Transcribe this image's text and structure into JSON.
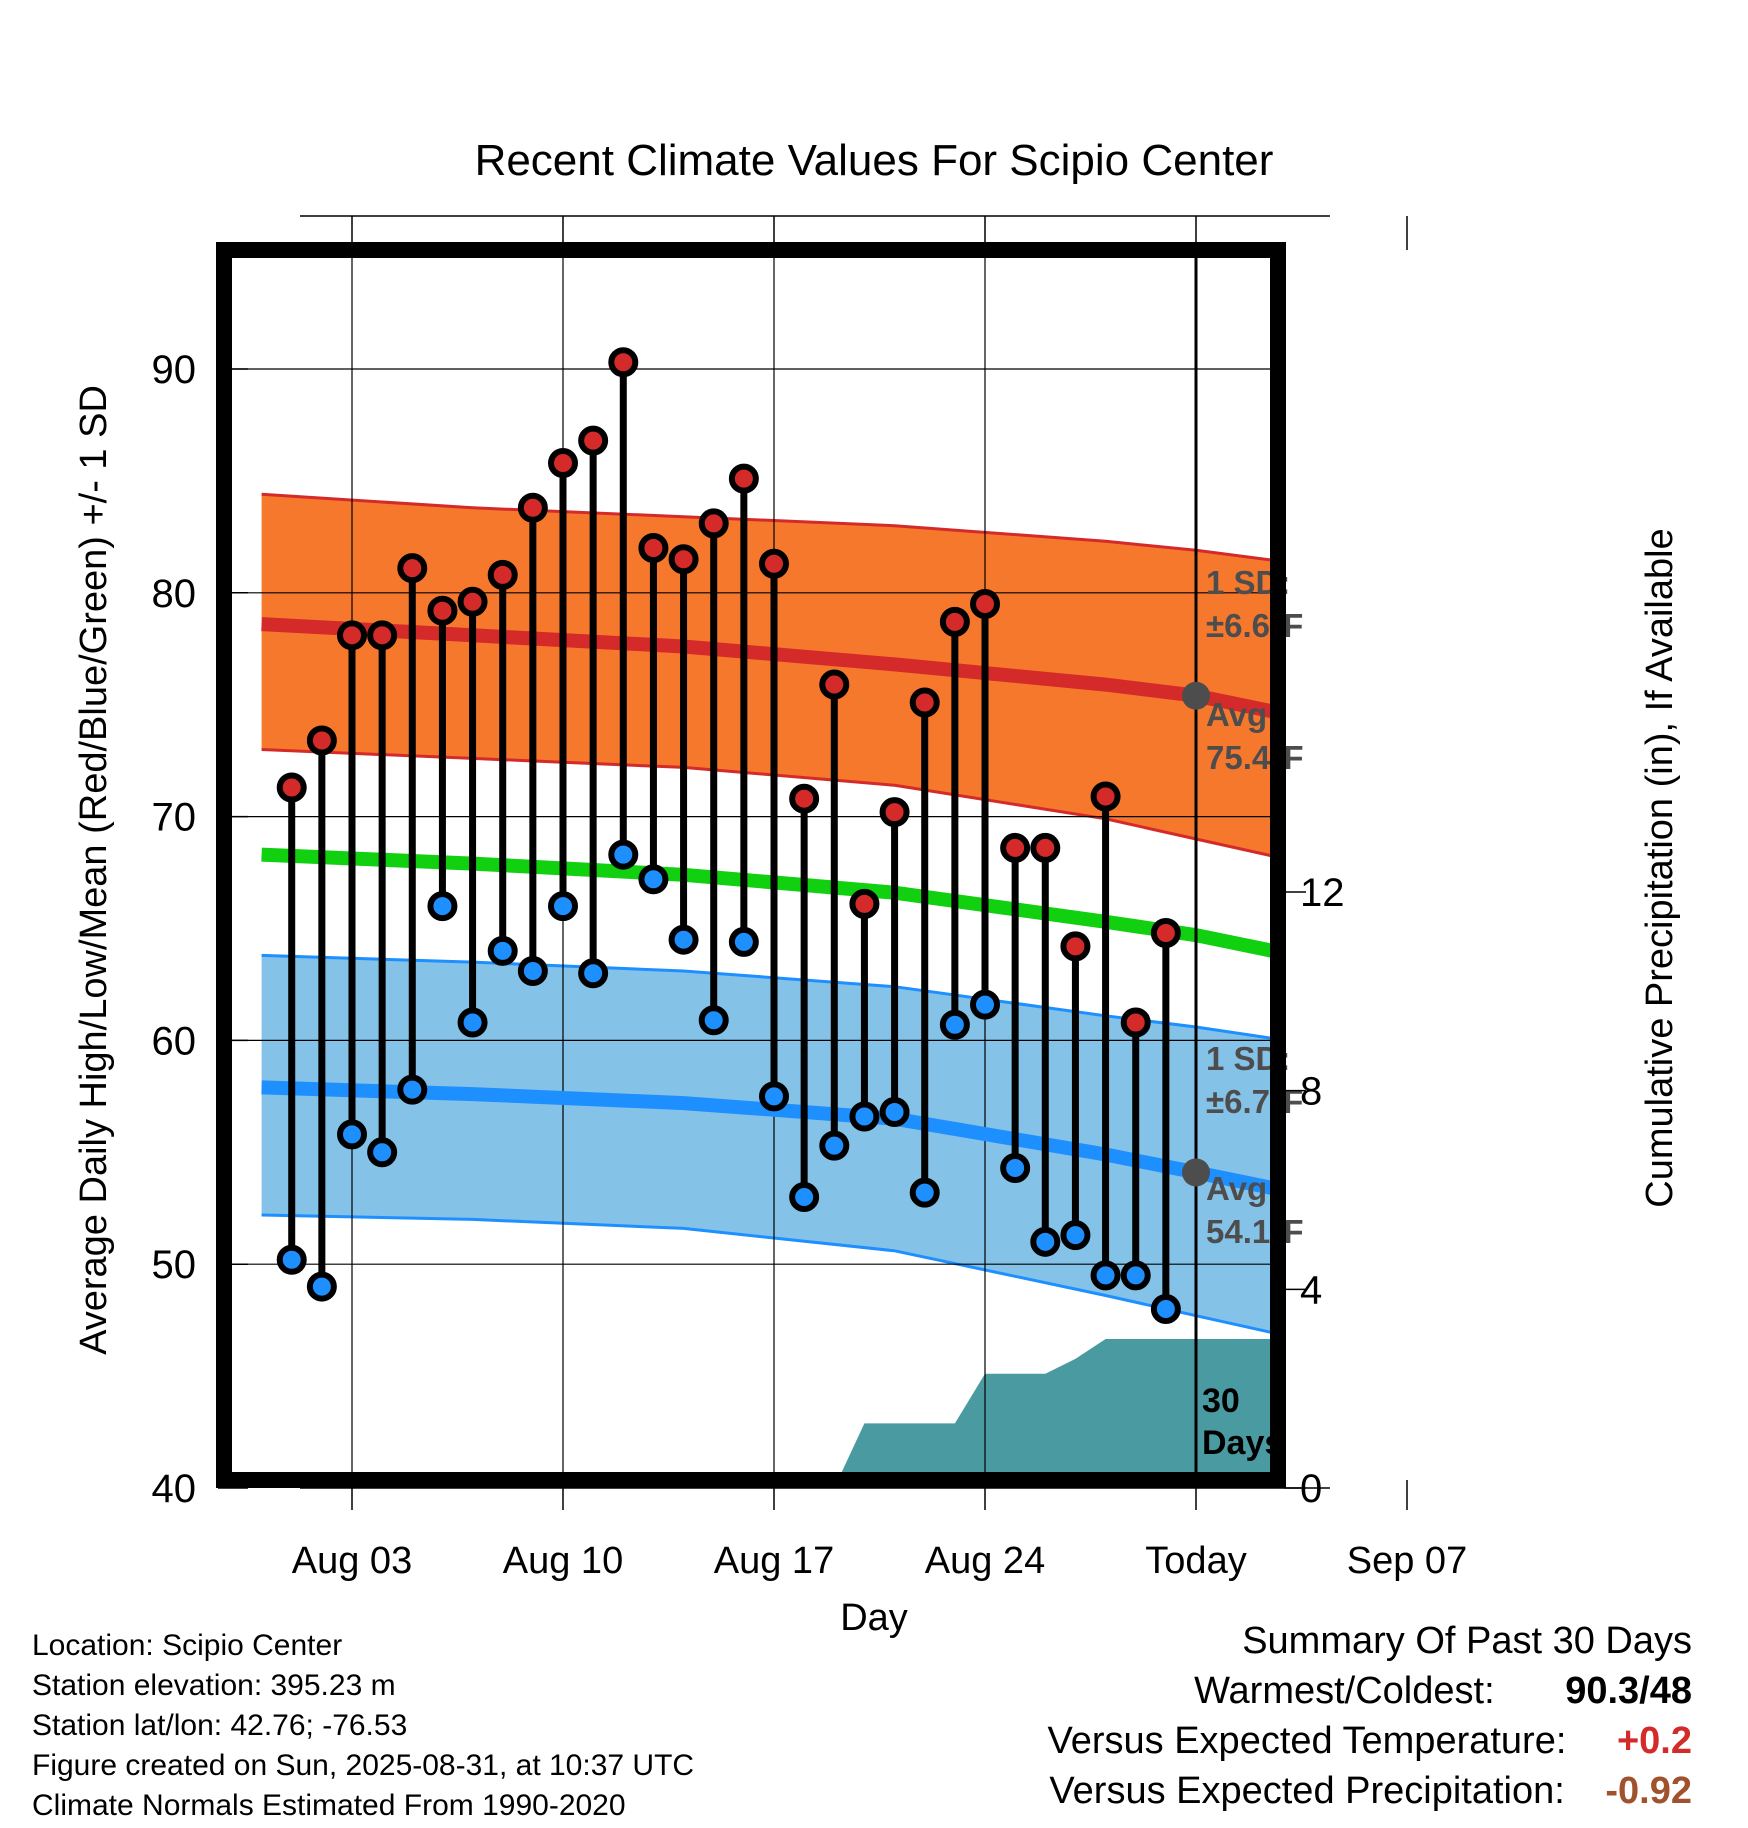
{
  "chart_data": {
    "type": "line",
    "title": "Recent Climate Values For Scipio Center",
    "xlabel": "Day",
    "ylabel": "Average Daily High/Low/Mean (Red/Blue/Green) +/- 1 SD",
    "y2label": "Cumulative Precipitation (in), If Available",
    "xlim": [
      "2025-07-31",
      "2025-09-10"
    ],
    "ylim": [
      40,
      95
    ],
    "y2lim": [
      0,
      23.5
    ],
    "grid": true,
    "x_ticks": [
      {
        "date": "2025-08-03",
        "label": "Aug 03"
      },
      {
        "date": "2025-08-10",
        "label": "Aug 10"
      },
      {
        "date": "2025-08-17",
        "label": "Aug 17"
      },
      {
        "date": "2025-08-24",
        "label": "Aug 24"
      },
      {
        "date": "2025-08-31",
        "label": "Today"
      },
      {
        "date": "2025-09-07",
        "label": "Sep 07"
      }
    ],
    "y_ticks": [
      40,
      50,
      60,
      70,
      80,
      90
    ],
    "y2_ticks": [
      0,
      4,
      8,
      12
    ],
    "today": "2025-08-31",
    "today_label_line1": "30",
    "today_label_line2": "Days",
    "colors": {
      "high": "#d42a2a",
      "high_band": "#f6782d",
      "low": "#1e8fff",
      "low_band": "#84c2e8",
      "mean": "#10d010",
      "precip": "#4a9aa2",
      "annotation": "#4d4d4d"
    },
    "normal_dates": [
      "2025-07-31",
      "2025-08-07",
      "2025-08-14",
      "2025-08-21",
      "2025-08-28",
      "2025-08-31",
      "2025-09-04",
      "2025-09-10"
    ],
    "normal_high": [
      78.6,
      78.1,
      77.6,
      76.8,
      75.9,
      75.4,
      74.3,
      72.8
    ],
    "normal_high_upper": [
      84.4,
      83.8,
      83.4,
      83.0,
      82.3,
      81.9,
      81.2,
      80.1
    ],
    "normal_high_lower": [
      73.0,
      72.6,
      72.2,
      71.4,
      69.9,
      69.0,
      67.8,
      66.0
    ],
    "normal_mean": [
      68.3,
      67.9,
      67.4,
      66.6,
      65.3,
      64.7,
      63.6,
      62.0
    ],
    "normal_low": [
      57.9,
      57.6,
      57.2,
      56.5,
      54.9,
      54.1,
      53.0,
      51.3
    ],
    "normal_low_upper": [
      63.8,
      63.5,
      63.1,
      62.4,
      61.1,
      60.6,
      59.8,
      58.6
    ],
    "normal_low_lower": [
      52.2,
      52.0,
      51.6,
      50.6,
      48.6,
      47.7,
      46.5,
      45.0
    ],
    "high_sd_label": "1 SD:",
    "high_sd_value": "±6.6°F",
    "high_avg_label": "Avg:",
    "high_avg_value": "75.4°F",
    "low_sd_label": "1 SD:",
    "low_sd_value": "±6.7°F",
    "low_avg_label": "Avg:",
    "low_avg_value": "54.1°F",
    "today_normal_high": 75.4,
    "today_normal_low": 54.1,
    "series": [
      {
        "name": "High",
        "dates": [
          "2025-08-01",
          "2025-08-02",
          "2025-08-03",
          "2025-08-04",
          "2025-08-05",
          "2025-08-06",
          "2025-08-07",
          "2025-08-08",
          "2025-08-09",
          "2025-08-10",
          "2025-08-11",
          "2025-08-12",
          "2025-08-13",
          "2025-08-14",
          "2025-08-15",
          "2025-08-16",
          "2025-08-17",
          "2025-08-18",
          "2025-08-19",
          "2025-08-20",
          "2025-08-21",
          "2025-08-22",
          "2025-08-23",
          "2025-08-24",
          "2025-08-25",
          "2025-08-26",
          "2025-08-27",
          "2025-08-28",
          "2025-08-29",
          "2025-08-30"
        ],
        "values": [
          71.3,
          73.4,
          78.1,
          78.1,
          81.1,
          79.2,
          79.6,
          80.8,
          83.8,
          85.8,
          86.8,
          90.3,
          82.0,
          81.5,
          83.1,
          85.1,
          81.3,
          70.8,
          75.9,
          66.1,
          70.2,
          75.1,
          78.7,
          79.5,
          68.6,
          68.6,
          64.2,
          70.9,
          60.8,
          64.8
        ]
      },
      {
        "name": "Low",
        "dates": [
          "2025-08-01",
          "2025-08-02",
          "2025-08-03",
          "2025-08-04",
          "2025-08-05",
          "2025-08-06",
          "2025-08-07",
          "2025-08-08",
          "2025-08-09",
          "2025-08-10",
          "2025-08-11",
          "2025-08-12",
          "2025-08-13",
          "2025-08-14",
          "2025-08-15",
          "2025-08-16",
          "2025-08-17",
          "2025-08-18",
          "2025-08-19",
          "2025-08-20",
          "2025-08-21",
          "2025-08-22",
          "2025-08-23",
          "2025-08-24",
          "2025-08-25",
          "2025-08-26",
          "2025-08-27",
          "2025-08-28",
          "2025-08-29",
          "2025-08-30"
        ],
        "values": [
          50.2,
          49.0,
          55.8,
          55.0,
          57.8,
          66.0,
          60.8,
          64.0,
          63.1,
          66.0,
          63.0,
          68.3,
          67.2,
          64.5,
          60.9,
          64.4,
          57.5,
          53.0,
          55.3,
          56.6,
          56.8,
          53.2,
          60.7,
          61.6,
          54.3,
          51.0,
          51.3,
          49.5,
          49.5,
          48.0
        ]
      }
    ],
    "precipitation": {
      "dates": [
        "2025-08-19",
        "2025-08-20",
        "2025-08-23",
        "2025-08-24",
        "2025-08-26",
        "2025-08-27",
        "2025-08-28",
        "2025-09-10"
      ],
      "values": [
        0.0,
        1.3,
        1.3,
        2.3,
        2.3,
        2.6,
        3.0,
        3.0
      ]
    }
  },
  "footer": {
    "location": "Location: Scipio Center",
    "elevation": "Station elevation: 395.23 m",
    "latlon": "Station lat/lon: 42.76; -76.53",
    "created": "Figure created on Sun, 2025-08-31, at 10:37 UTC",
    "normals": "Climate Normals Estimated From 1990-2020"
  },
  "summary": {
    "title": "Summary Of Past 30 Days",
    "warm_cold_label": "Warmest/Coldest:",
    "warm_value": "90.3",
    "cold_value": "/48",
    "temp_label": "Versus Expected Temperature:",
    "temp_value": "+0.2",
    "temp_color": "#d42a2a",
    "precip_label": "Versus Expected Precipitation:",
    "precip_value": "-0.92",
    "precip_color": "#a0522d"
  }
}
